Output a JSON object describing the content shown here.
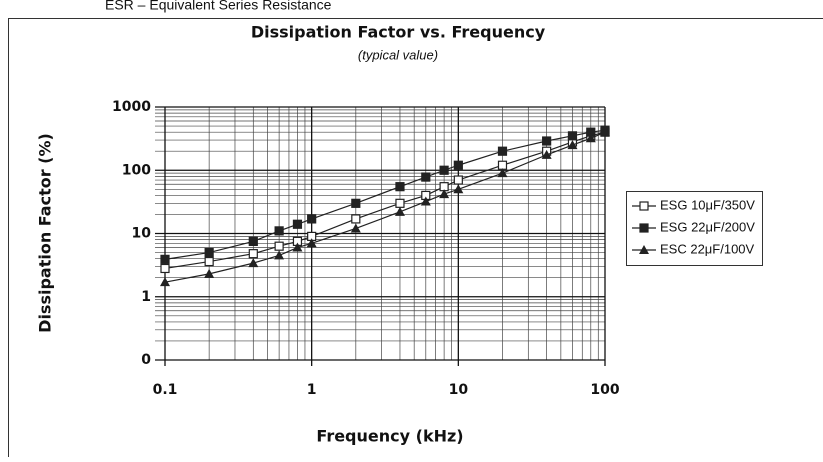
{
  "header": "ESR – Equivalent Series Resistance",
  "chart_data": {
    "type": "line",
    "title": "Dissipation Factor vs. Frequency",
    "subtitle": "(typical value)",
    "x_label": "Frequency (kHz)",
    "y_label": "Dissipation Factor (%)",
    "x": [
      0.1,
      0.2,
      0.4,
      0.6,
      0.8,
      1,
      2,
      4,
      6,
      8,
      10,
      20,
      40,
      60,
      80,
      100
    ],
    "series": [
      {
        "name": "ESG 10μF/350V",
        "color": "#222222",
        "marker": "open-square",
        "values": [
          2.8,
          3.6,
          4.8,
          6.3,
          7.5,
          9,
          17,
          30,
          40,
          55,
          70,
          120,
          200,
          280,
          350,
          400
        ]
      },
      {
        "name": "ESG 22μF/200V",
        "color": "#222222",
        "marker": "square",
        "values": [
          3.9,
          5,
          7.5,
          11,
          14,
          17,
          30,
          55,
          78,
          100,
          120,
          200,
          290,
          350,
          400,
          430
        ]
      },
      {
        "name": "ESC 22μF/100V",
        "color": "#222222",
        "marker": "triangle",
        "values": [
          1.7,
          2.3,
          3.4,
          4.5,
          6,
          7,
          12,
          22,
          32,
          42,
          50,
          90,
          175,
          250,
          320,
          400
        ]
      }
    ],
    "xlim": [
      0.1,
      100
    ],
    "ylim": [
      0.1,
      1000
    ],
    "xticks": [
      0.1,
      1,
      10,
      100
    ],
    "yticks": [
      {
        "value": 0.1,
        "label": "0"
      },
      1,
      10,
      100,
      1000
    ],
    "xscale": "log",
    "yscale": "log",
    "grid": true,
    "legend": "right"
  }
}
